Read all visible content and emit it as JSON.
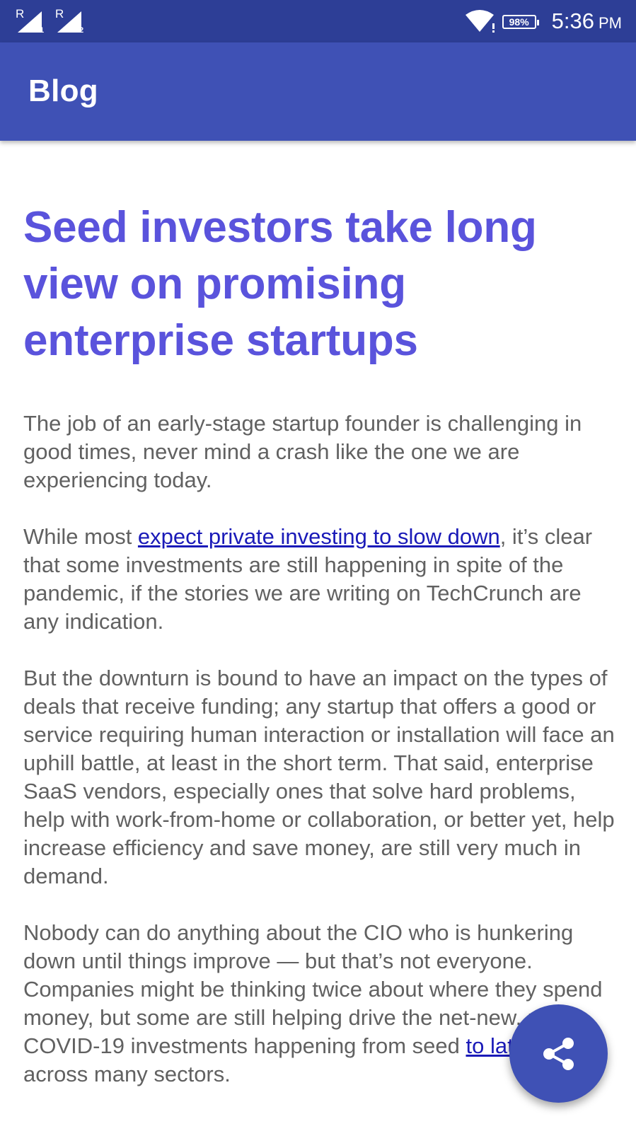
{
  "status_bar": {
    "sim1_label": "R",
    "sim1_index": "1",
    "sim2_label": "R",
    "sim2_index": "2",
    "battery": "98%",
    "time": "5:36",
    "ampm": "PM",
    "icons": [
      "signal-icon",
      "wifi-icon",
      "battery-icon"
    ]
  },
  "app_bar": {
    "title": "Blog"
  },
  "article": {
    "title": "Seed investors take long view on promising enterprise startups",
    "p1": "The job of an early-stage startup founder is challenging in good times, never mind a crash like the one we are experiencing today.",
    "p2_before": "While most ",
    "p2_link": "expect private investing to slow down",
    "p2_after": ", it’s clear that some investments are still happening in spite of the pandemic, if the stories we are writing on TechCrunch are any indication.",
    "p3": "But the downturn is bound to have an impact on the types of deals that receive funding; any startup that offers a good or service requiring human interaction or installation will face an uphill battle, at least in the short term. That said, enterprise SaaS vendors, especially ones that solve hard problems, help with work-from-home or collaboration, or better yet, help increase efficiency and save money, are still very much in demand.",
    "p4_before": "Nobody can do anything about the CIO who is hunkering down until things improve — but that’s not everyone. Companies might be thinking twice about where they spend money, but some are still helping drive the net-new, post-COVID-19 investments happening from seed ",
    "p4_link": "to late stage",
    "p4_after": " across many sectors."
  },
  "fab": {
    "icon": "share-icon"
  },
  "colors": {
    "status_bar": "#2d3e96",
    "app_bar": "#3f51b5",
    "headline": "#5a53dc",
    "body_text": "#616161",
    "link": "#1a1ab8",
    "fab": "#3f51b5"
  }
}
